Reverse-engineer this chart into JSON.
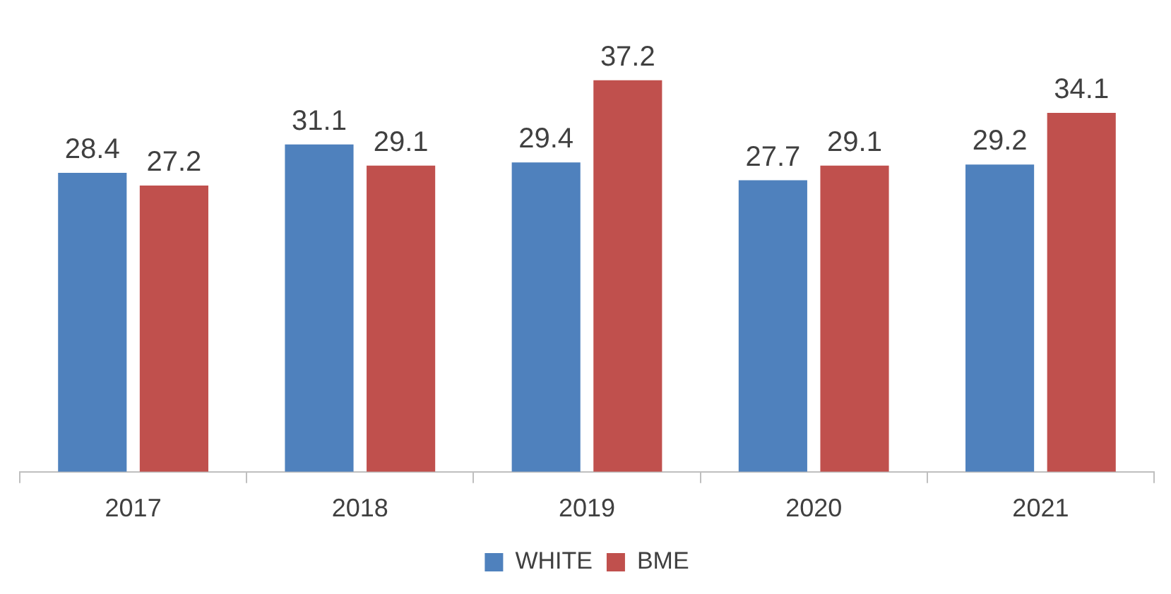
{
  "chart_data": {
    "type": "bar",
    "categories": [
      "2017",
      "2018",
      "2019",
      "2020",
      "2021"
    ],
    "series": [
      {
        "name": "WHITE",
        "color": "#4f81bd",
        "values": [
          28.4,
          31.1,
          29.4,
          27.7,
          29.2
        ]
      },
      {
        "name": "BME",
        "color": "#c0504d",
        "values": [
          27.2,
          29.1,
          37.2,
          29.1,
          34.1
        ]
      }
    ],
    "data_labels": true,
    "legend": "bottom",
    "grid": false
  }
}
